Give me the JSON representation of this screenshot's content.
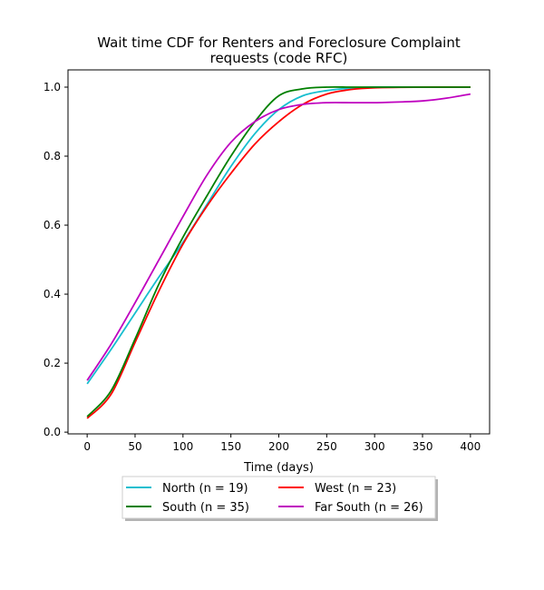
{
  "chart_data": {
    "type": "line",
    "title": "Wait time CDF for Renters and Foreclosure Complaint\nrequests (code RFC)",
    "xlabel": "Time (days)",
    "ylabel": "",
    "xlim": [
      -20,
      420
    ],
    "ylim": [
      -0.005,
      1.05
    ],
    "xticks": [
      0,
      50,
      100,
      150,
      200,
      250,
      300,
      350,
      400
    ],
    "yticks": [
      0.0,
      0.2,
      0.4,
      0.6,
      0.8,
      1.0
    ],
    "grid": false,
    "legend": {
      "placement": "bottom-center",
      "columns": 2
    },
    "series": [
      {
        "name": "North (n = 19)",
        "color": "#17becf",
        "x": [
          0,
          25,
          50,
          75,
          100,
          125,
          150,
          175,
          200,
          225,
          250,
          275,
          300,
          350,
          400
        ],
        "y": [
          0.14,
          0.24,
          0.345,
          0.45,
          0.55,
          0.66,
          0.77,
          0.865,
          0.935,
          0.975,
          0.99,
          0.997,
          1.0,
          1.0,
          1.0
        ]
      },
      {
        "name": "West (n = 23)",
        "color": "#ff0000",
        "x": [
          0,
          25,
          50,
          75,
          100,
          125,
          150,
          175,
          200,
          225,
          250,
          275,
          300,
          350,
          400
        ],
        "y": [
          0.04,
          0.11,
          0.26,
          0.41,
          0.545,
          0.655,
          0.75,
          0.835,
          0.9,
          0.95,
          0.98,
          0.993,
          0.998,
          1.0,
          1.0
        ]
      },
      {
        "name": "South (n = 35)",
        "color": "#008000",
        "x": [
          0,
          25,
          50,
          75,
          100,
          125,
          150,
          175,
          200,
          225,
          250,
          275,
          300,
          350,
          400
        ],
        "y": [
          0.045,
          0.12,
          0.27,
          0.43,
          0.565,
          0.685,
          0.8,
          0.9,
          0.975,
          0.995,
          1.0,
          1.0,
          1.0,
          1.0,
          1.0
        ]
      },
      {
        "name": "Far South (n = 26)",
        "color": "#bf00bf",
        "x": [
          0,
          25,
          50,
          75,
          100,
          125,
          150,
          175,
          200,
          225,
          250,
          275,
          300,
          325,
          350,
          375,
          400
        ],
        "y": [
          0.15,
          0.255,
          0.375,
          0.5,
          0.625,
          0.745,
          0.84,
          0.9,
          0.935,
          0.95,
          0.955,
          0.955,
          0.955,
          0.957,
          0.96,
          0.968,
          0.98
        ]
      }
    ]
  }
}
